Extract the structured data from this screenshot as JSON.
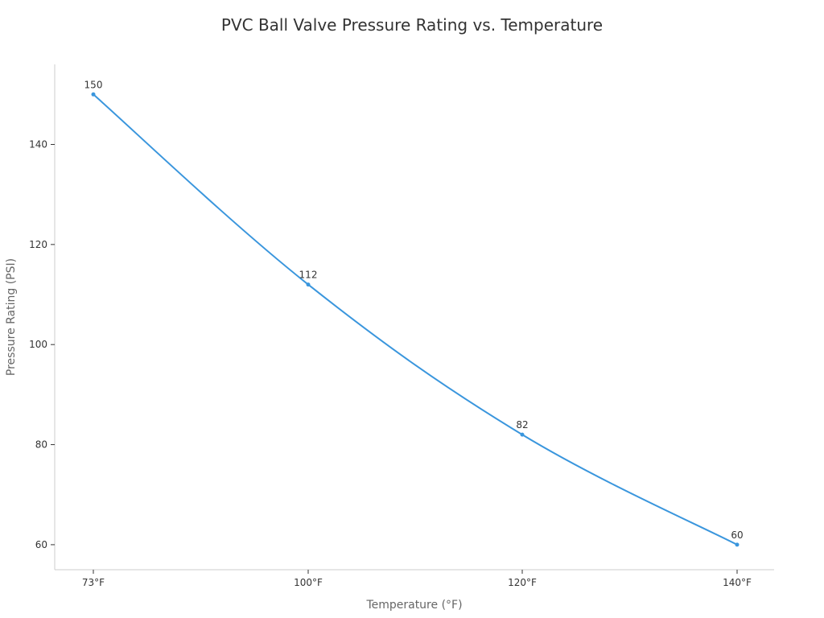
{
  "chart_data": {
    "type": "line",
    "title": "PVC Ball Valve Pressure Rating vs. Temperature",
    "xlabel": "Temperature (°F)",
    "ylabel": "Pressure Rating (PSI)",
    "categories": [
      "73°F",
      "100°F",
      "120°F",
      "140°F"
    ],
    "series": [
      {
        "values": [
          150,
          112,
          82,
          60
        ]
      }
    ],
    "ylim": [
      55,
      156
    ],
    "yticks": [
      60,
      80,
      100,
      120,
      140
    ],
    "grid": false,
    "data_labels": true,
    "colors": {
      "line": "#3a96dd",
      "axis": "#cccccc"
    }
  }
}
